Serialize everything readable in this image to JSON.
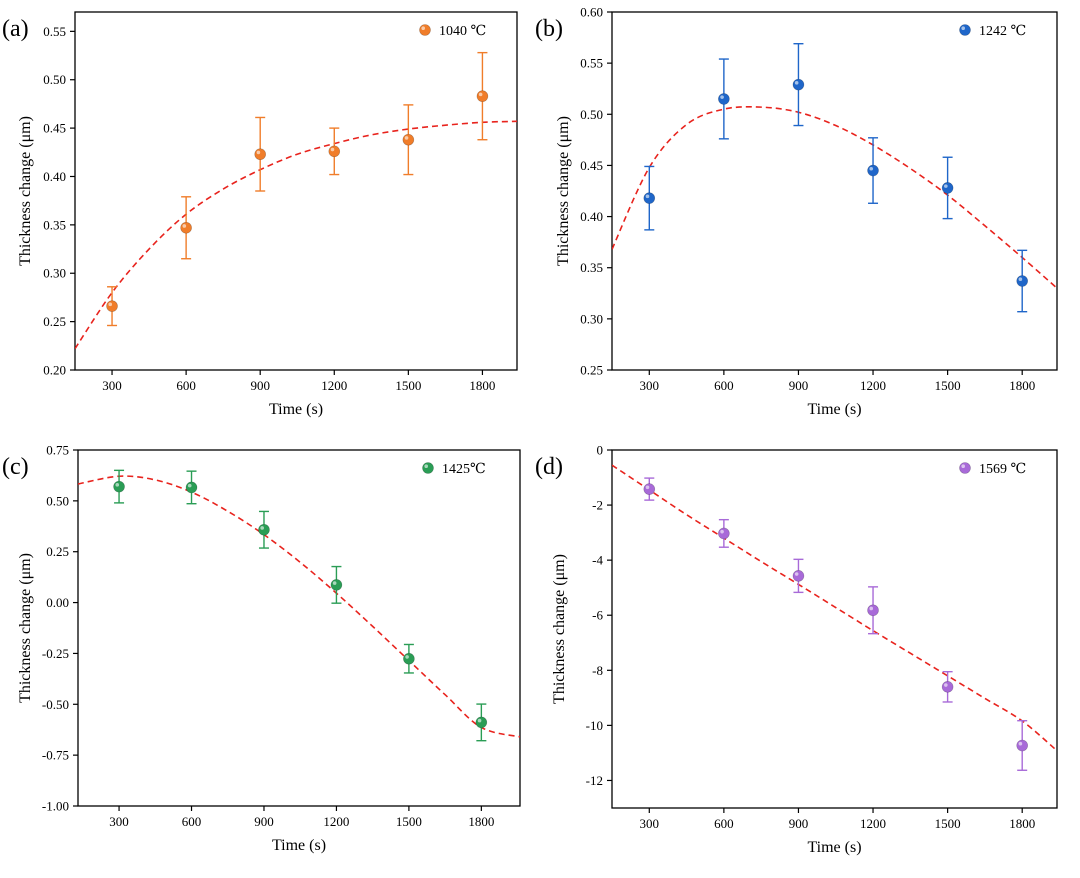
{
  "chart_data": [
    {
      "type": "scatter",
      "panel_label": "(a)",
      "xlabel": "Time (s)",
      "ylabel": "Thickness change (μm)",
      "xlim": [
        150,
        1940
      ],
      "ylim": [
        0.2,
        0.57
      ],
      "xticks": [
        300,
        600,
        900,
        1200,
        1500,
        1800
      ],
      "xtick_labels": [
        "300",
        "600",
        "900",
        "1200",
        "1500",
        "1800"
      ],
      "yticks": [
        0.2,
        0.25,
        0.3,
        0.35,
        0.4,
        0.45,
        0.5,
        0.55
      ],
      "ytick_labels": [
        "0.20",
        "0.25",
        "0.30",
        "0.35",
        "0.40",
        "0.45",
        "0.50",
        "0.55"
      ],
      "series": [
        {
          "name": "1040 ℃",
          "color": "#f07d2a",
          "x": [
            300,
            600,
            900,
            1200,
            1500,
            1800
          ],
          "y": [
            0.266,
            0.347,
            0.423,
            0.426,
            0.438,
            0.483
          ],
          "error": [
            0.02,
            0.032,
            0.038,
            0.024,
            0.036,
            0.045
          ]
        }
      ],
      "fit": {
        "color": "#e8231d",
        "style": "dashed",
        "x": [
          150,
          300,
          450,
          600,
          750,
          900,
          1050,
          1200,
          1350,
          1500,
          1650,
          1800,
          1940
        ],
        "y": [
          0.222,
          0.28,
          0.325,
          0.361,
          0.387,
          0.407,
          0.423,
          0.434,
          0.443,
          0.449,
          0.453,
          0.456,
          0.457
        ]
      },
      "legend_position": "top-right",
      "grid": false
    },
    {
      "type": "scatter",
      "panel_label": "(b)",
      "xlabel": "Time (s)",
      "ylabel": "Thickness change (μm)",
      "xlim": [
        150,
        1940
      ],
      "ylim": [
        0.25,
        0.6
      ],
      "xticks": [
        300,
        600,
        900,
        1200,
        1500,
        1800
      ],
      "xtick_labels": [
        "300",
        "600",
        "900",
        "1200",
        "1500",
        "1800"
      ],
      "yticks": [
        0.25,
        0.3,
        0.35,
        0.4,
        0.45,
        0.5,
        0.55,
        0.6
      ],
      "ytick_labels": [
        "0.25",
        "0.30",
        "0.35",
        "0.40",
        "0.45",
        "0.50",
        "0.55",
        "0.60"
      ],
      "series": [
        {
          "name": "1242 ℃",
          "color": "#1f66c9",
          "x": [
            300,
            600,
            900,
            1200,
            1500,
            1800
          ],
          "y": [
            0.418,
            0.515,
            0.529,
            0.445,
            0.428,
            0.337
          ],
          "error": [
            0.031,
            0.039,
            0.04,
            0.032,
            0.03,
            0.03
          ]
        }
      ],
      "fit": {
        "color": "#e8231d",
        "style": "dashed",
        "x": [
          150,
          300,
          450,
          600,
          750,
          900,
          1050,
          1200,
          1350,
          1500,
          1650,
          1800,
          1940
        ],
        "y": [
          0.368,
          0.448,
          0.49,
          0.505,
          0.507,
          0.502,
          0.489,
          0.47,
          0.447,
          0.421,
          0.391,
          0.36,
          0.33
        ]
      },
      "legend_position": "top-right",
      "grid": false
    },
    {
      "type": "scatter",
      "panel_label": "(c)",
      "xlabel": "Time (s)",
      "ylabel": "Thickness change (μm)",
      "xlim": [
        130,
        1960
      ],
      "ylim": [
        -1.0,
        0.75
      ],
      "xticks": [
        300,
        600,
        900,
        1200,
        1500,
        1800
      ],
      "xtick_labels": [
        "300",
        "600",
        "900",
        "1200",
        "1500",
        "1800"
      ],
      "yticks": [
        -1.0,
        -0.75,
        -0.5,
        -0.25,
        0.0,
        0.25,
        0.5,
        0.75
      ],
      "ytick_labels": [
        "-1.00",
        "-0.75",
        "-0.50",
        "-0.25",
        "0.00",
        "0.25",
        "0.50",
        "0.75"
      ],
      "series": [
        {
          "name": "1425℃",
          "color": "#2a9d55",
          "x": [
            300,
            600,
            900,
            1200,
            1500,
            1800
          ],
          "y": [
            0.57,
            0.566,
            0.358,
            0.087,
            -0.276,
            -0.589
          ],
          "error": [
            0.08,
            0.08,
            0.09,
            0.09,
            0.07,
            0.09
          ]
        }
      ],
      "fit": {
        "color": "#e8231d",
        "style": "dashed",
        "x": [
          130,
          300,
          450,
          600,
          750,
          900,
          1050,
          1200,
          1350,
          1500,
          1650,
          1800,
          1960
        ],
        "y": [
          0.583,
          0.621,
          0.603,
          0.543,
          0.449,
          0.334,
          0.198,
          0.046,
          -0.117,
          -0.285,
          -0.453,
          -0.614,
          -0.66
        ]
      },
      "legend_position": "top-right",
      "grid": false
    },
    {
      "type": "scatter",
      "panel_label": "(d)",
      "xlabel": "Time (s)",
      "ylabel": "Thickness change (μm)",
      "xlim": [
        150,
        1940
      ],
      "ylim": [
        -13,
        0
      ],
      "xticks": [
        300,
        600,
        900,
        1200,
        1500,
        1800
      ],
      "xtick_labels": [
        "300",
        "600",
        "900",
        "1200",
        "1500",
        "1800"
      ],
      "yticks": [
        -12,
        -10,
        -8,
        -6,
        -4,
        -2,
        0
      ],
      "ytick_labels": [
        "-12",
        "-10",
        "-8",
        "-6",
        "-4",
        "-2",
        "0"
      ],
      "series": [
        {
          "name": "1569 ℃",
          "color": "#a86ad8",
          "x": [
            300,
            600,
            900,
            1200,
            1500,
            1800
          ],
          "y": [
            -1.42,
            -3.03,
            -4.57,
            -5.82,
            -8.6,
            -10.73
          ],
          "error": [
            0.4,
            0.5,
            0.6,
            0.85,
            0.55,
            0.9
          ]
        }
      ],
      "fit": {
        "color": "#e8231d",
        "style": "dashed",
        "x": [
          150,
          300,
          450,
          600,
          750,
          900,
          1050,
          1200,
          1350,
          1500,
          1650,
          1800,
          1940
        ],
        "y": [
          -0.55,
          -1.45,
          -2.35,
          -3.2,
          -4.05,
          -4.88,
          -5.72,
          -6.56,
          -7.38,
          -8.2,
          -9.02,
          -9.84,
          -10.92
        ]
      },
      "legend_position": "top-right",
      "grid": false
    }
  ]
}
